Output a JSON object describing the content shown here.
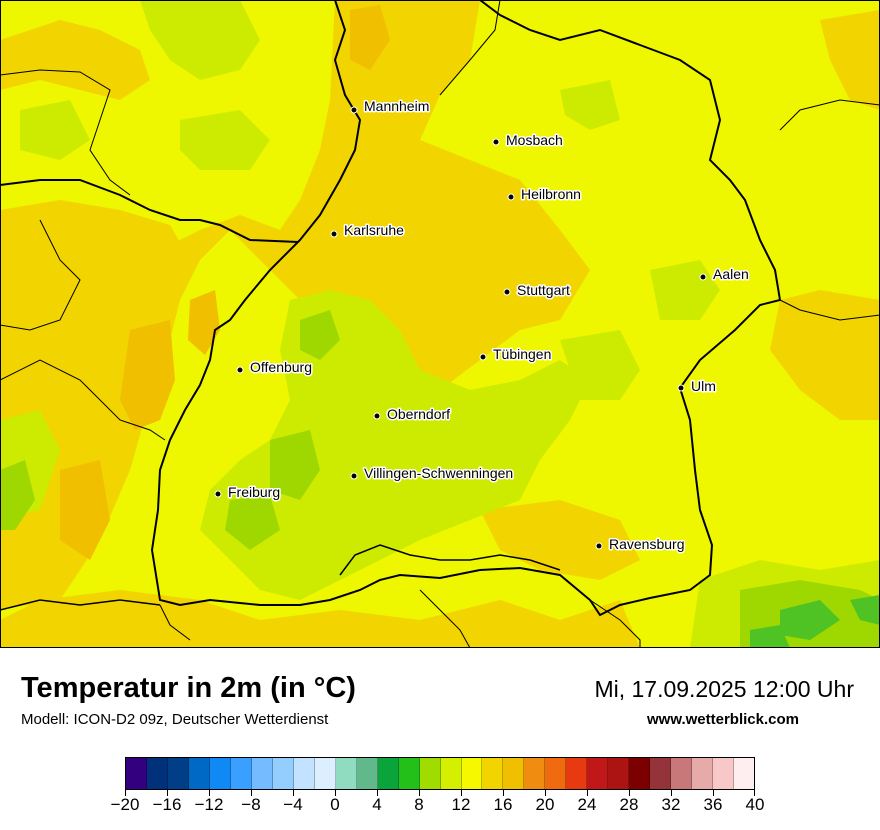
{
  "title": "Temperatur in 2m (in °C)",
  "model": "Modell: ICON-D2 09z, Deutscher Wetterdienst",
  "datetime": "Mi, 17.09.2025 12:00 Uhr",
  "website": "www.wetterblick.com",
  "colors": {
    "base_field": "#eef700",
    "warm_field": "#f2d400",
    "warmer_field": "#f0bf00",
    "cool_field": "#cdeb00",
    "cooler_field": "#9ed800",
    "cold_field": "#4fc224"
  },
  "cities": [
    {
      "name": "Mannheim"
    },
    {
      "name": "Mosbach"
    },
    {
      "name": "Heilbronn"
    },
    {
      "name": "Karlsruhe"
    },
    {
      "name": "Aalen"
    },
    {
      "name": "Stuttgart"
    },
    {
      "name": "Tübingen"
    },
    {
      "name": "Offenburg"
    },
    {
      "name": "Ulm"
    },
    {
      "name": "Oberndorf"
    },
    {
      "name": "Villingen-Schwenningen"
    },
    {
      "name": "Freiburg"
    },
    {
      "name": "Ravensburg"
    }
  ],
  "legend": {
    "min": -20,
    "max": 40,
    "tick_labels": [
      "−20",
      "−16",
      "−12",
      "−8",
      "−4",
      "0",
      "4",
      "8",
      "12",
      "16",
      "20",
      "24",
      "28",
      "32",
      "36",
      "40"
    ],
    "colors": [
      "#330080",
      "#00317a",
      "#003f87",
      "#0069c5",
      "#1089f5",
      "#3aa0ff",
      "#74bbff",
      "#93ceff",
      "#c2e2ff",
      "#dcefff",
      "#8fdcc0",
      "#61b88a",
      "#0aa43a",
      "#23c01a",
      "#a0dc00",
      "#d4f000",
      "#f6f800",
      "#f2d400",
      "#f0bf00",
      "#f08c10",
      "#f06a10",
      "#e83a10",
      "#c01818",
      "#ac1414",
      "#7c0000",
      "#94343a",
      "#c87878",
      "#e6aaa8",
      "#f8c8c8",
      "#ffeef0"
    ]
  }
}
